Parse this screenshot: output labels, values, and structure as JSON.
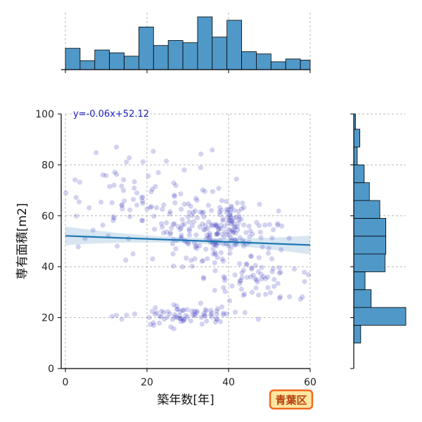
{
  "chart_data": {
    "type": "scatter",
    "xlabel": "築年数[年]",
    "ylabel": "専有面積[m2]",
    "xlim": [
      0,
      60
    ],
    "ylim": [
      0,
      100
    ],
    "x_ticks": [
      0,
      20,
      40,
      60
    ],
    "y_ticks": [
      0,
      20,
      40,
      60,
      80,
      100
    ],
    "grid": true,
    "regression": {
      "label": "y=-0.06x+52.12",
      "slope": -0.06,
      "intercept": 52.12,
      "color": "#1f77b4"
    },
    "badge": "青葉区",
    "point_color": "#2323b5",
    "hist_color": "#5098c8",
    "x_hist": {
      "bin_edges": [
        0,
        3.6,
        7.2,
        10.8,
        14.4,
        18,
        21.6,
        25.2,
        28.8,
        32.4,
        36,
        39.6,
        43.2,
        46.8,
        50.4,
        54,
        57.6,
        60
      ],
      "counts": [
        38,
        16,
        35,
        30,
        24,
        76,
        43,
        52,
        48,
        94,
        58,
        88,
        32,
        28,
        14,
        19,
        17
      ]
    },
    "y_hist": {
      "bin_edges": [
        10,
        17,
        24,
        31,
        38,
        45,
        52,
        59,
        66,
        73,
        80,
        87,
        94,
        100
      ],
      "counts": [
        8,
        60,
        20,
        13,
        36,
        37,
        37,
        30,
        18,
        12,
        4,
        7,
        2
      ]
    }
  }
}
